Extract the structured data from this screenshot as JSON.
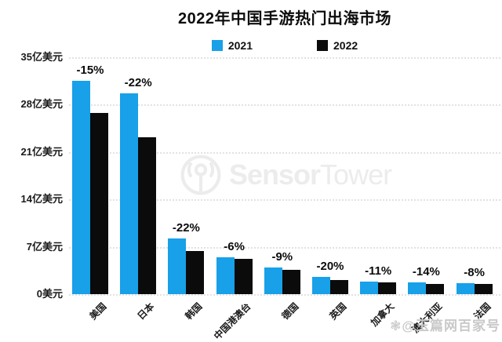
{
  "title": "2022年中国手游热门出海市场",
  "legend": {
    "items": [
      {
        "label": "2021",
        "color": "#18A0E8"
      },
      {
        "label": "2022",
        "color": "#0b0b0b"
      }
    ]
  },
  "y_axis": {
    "ticks": [
      "35亿美元",
      "28亿美元",
      "21亿美元",
      "14亿美元",
      "7亿美元",
      "0美元"
    ],
    "unit": "亿美元"
  },
  "watermarks": {
    "center_brand_bold": "Sensor",
    "center_brand_light": "Tower",
    "corner_text": "❃@玉篇网百家号"
  },
  "colors": {
    "series_2021": "#18A0E8",
    "series_2022": "#0b0b0b",
    "gridline": "#e2e2e2",
    "watermark": "#ececec"
  },
  "chart_data": {
    "type": "bar",
    "title": "2022年中国手游热门出海市场",
    "categories": [
      "美国",
      "日本",
      "韩国",
      "中国港澳台",
      "德国",
      "英国",
      "加拿大",
      "澳大利亚",
      "法国"
    ],
    "series": [
      {
        "name": "2021",
        "color": "#18A0E8",
        "values": [
          31.5,
          29.7,
          8.2,
          5.5,
          3.9,
          2.6,
          1.9,
          1.75,
          1.6
        ]
      },
      {
        "name": "2022",
        "color": "#0b0b0b",
        "values": [
          26.8,
          23.2,
          6.4,
          5.2,
          3.6,
          2.1,
          1.7,
          1.5,
          1.47
        ]
      }
    ],
    "change_labels": [
      "-15%",
      "-22%",
      "-22%",
      "-6%",
      "-9%",
      "-20%",
      "-11%",
      "-14%",
      "-8%"
    ],
    "ylabel": "亿美元",
    "ylim": [
      0,
      35
    ],
    "y_tick_step": 7,
    "grid": "dotted horizontal",
    "legend_position": "top center",
    "x_label_rotation_deg": 45
  }
}
